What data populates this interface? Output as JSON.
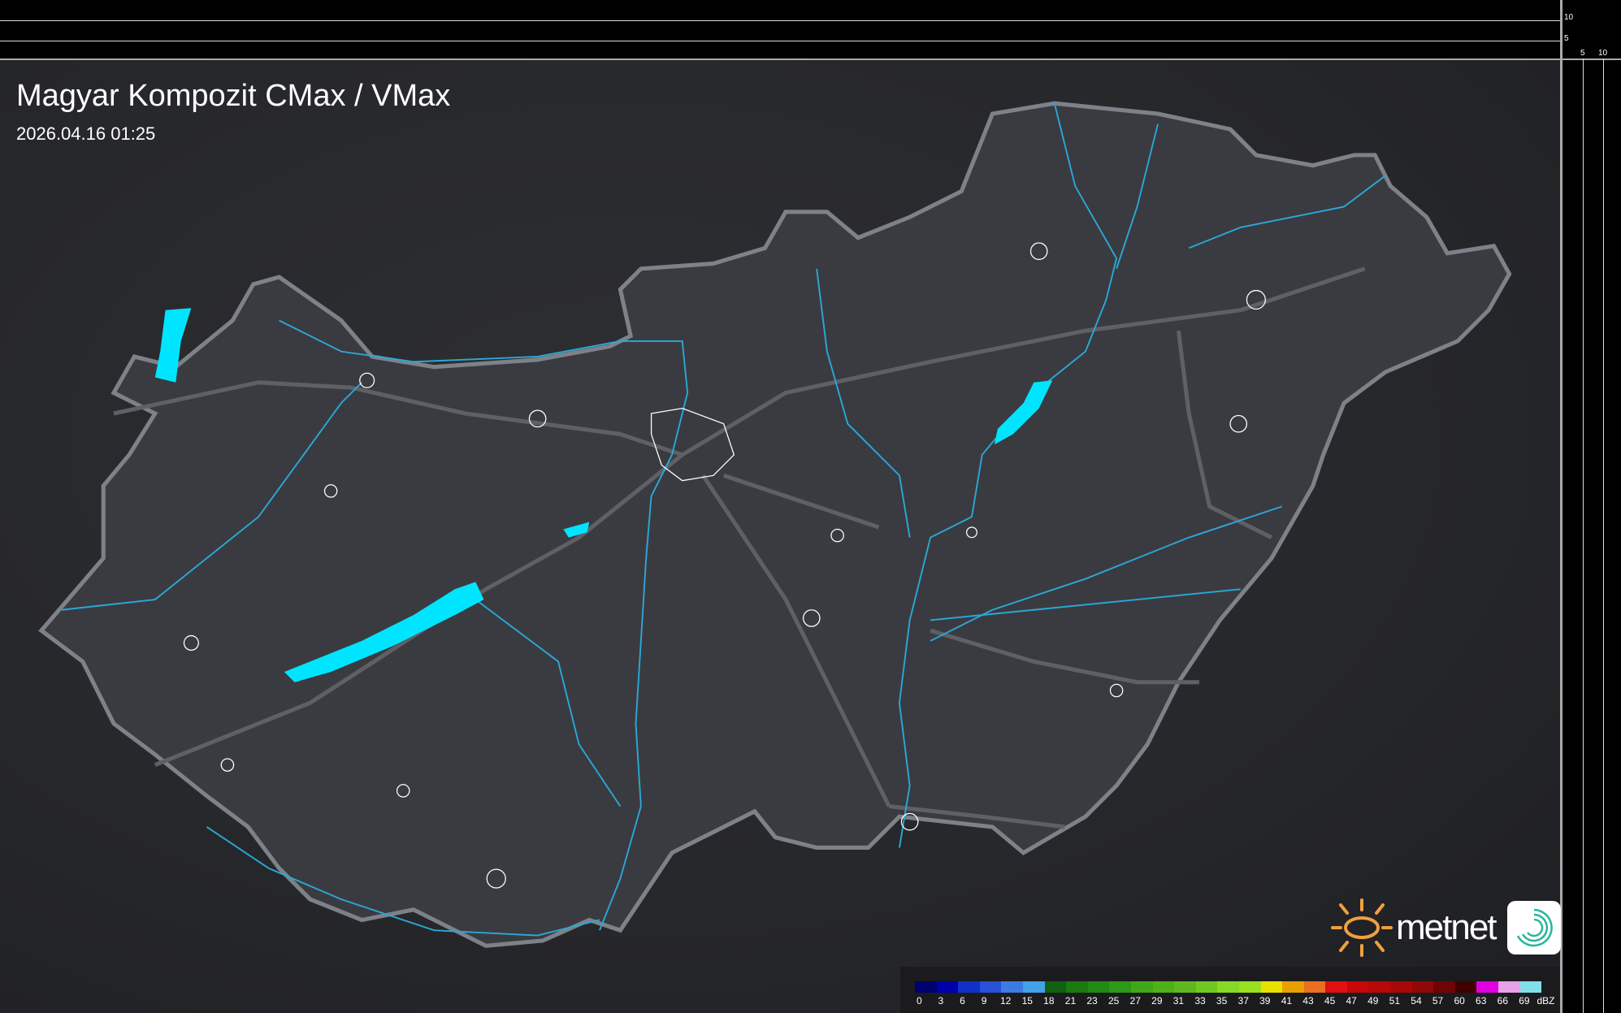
{
  "header": {
    "title": "Magyar Kompozit CMax / VMax",
    "timestamp": "2026.04.16 01:25"
  },
  "axes": {
    "top_ticks": [
      "10",
      "5"
    ],
    "right_ticks": [
      "5",
      "10"
    ]
  },
  "legend": {
    "labels": [
      "0",
      "3",
      "6",
      "9",
      "12",
      "15",
      "18",
      "21",
      "23",
      "25",
      "27",
      "29",
      "31",
      "33",
      "35",
      "37",
      "39",
      "41",
      "43",
      "45",
      "47",
      "49",
      "51",
      "54",
      "57",
      "60",
      "63",
      "66",
      "69"
    ],
    "unit": "dBZ",
    "colors": [
      "#000070",
      "#0000a8",
      "#1030c8",
      "#2850d8",
      "#3c7ce0",
      "#44a0e8",
      "#106010",
      "#1a7a10",
      "#208a14",
      "#2a9a18",
      "#40a818",
      "#50b018",
      "#60b820",
      "#70c820",
      "#88d828",
      "#98e020",
      "#e8e000",
      "#e8a000",
      "#e87020",
      "#e01010",
      "#c80808",
      "#b80808",
      "#a80808",
      "#900808",
      "#700404",
      "#400000",
      "#e000e0",
      "#e8a0e8",
      "#80e0e8"
    ]
  },
  "branding": {
    "logo_text": "metnet",
    "accent": "#f0a040"
  },
  "colors": {
    "water": "#00e5ff",
    "river": "#2aa8d8",
    "border": "#7a7e84",
    "roads": "#5a5c60"
  }
}
